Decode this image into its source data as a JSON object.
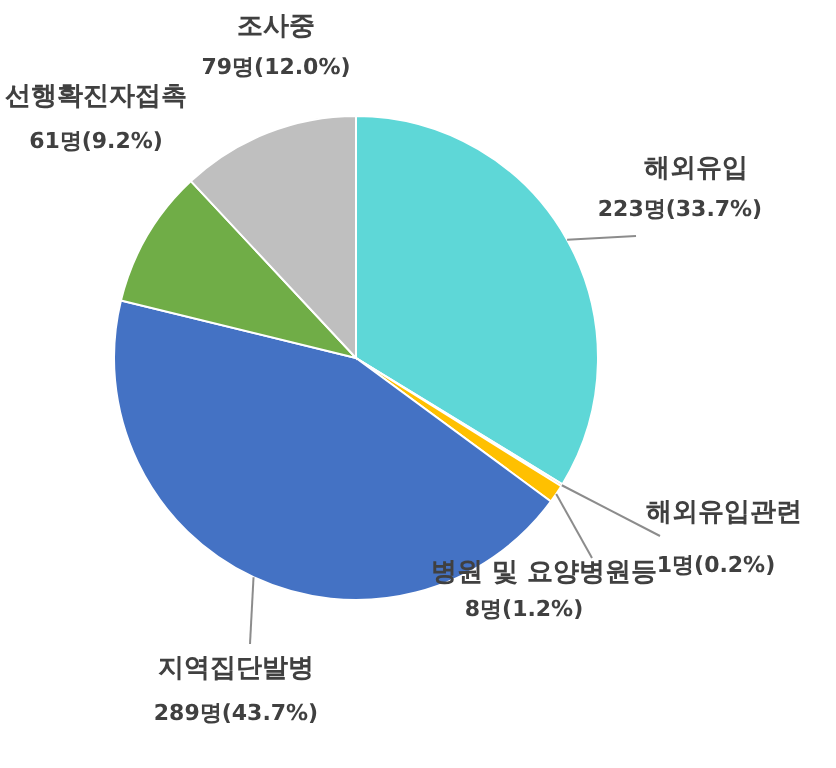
{
  "chart_data": {
    "type": "pie",
    "categories": [
      "해외유입",
      "해외유입관련",
      "병원 및 요양병원등",
      "지역집단발병",
      "선행확진자접촉",
      "조사중"
    ],
    "values": [
      223,
      1,
      8,
      289,
      61,
      79
    ],
    "colors": [
      "#5ed7d7",
      "#ed7d31",
      "#ffc000",
      "#4472c4",
      "#70ad47",
      "#bfbfbf"
    ],
    "value_labels": [
      "223명(33.7%)",
      "1명(0.2%)",
      "8명(1.2%)",
      "289명(43.7%)",
      "61명(9.2%)",
      "79명(12.0%)"
    ]
  }
}
